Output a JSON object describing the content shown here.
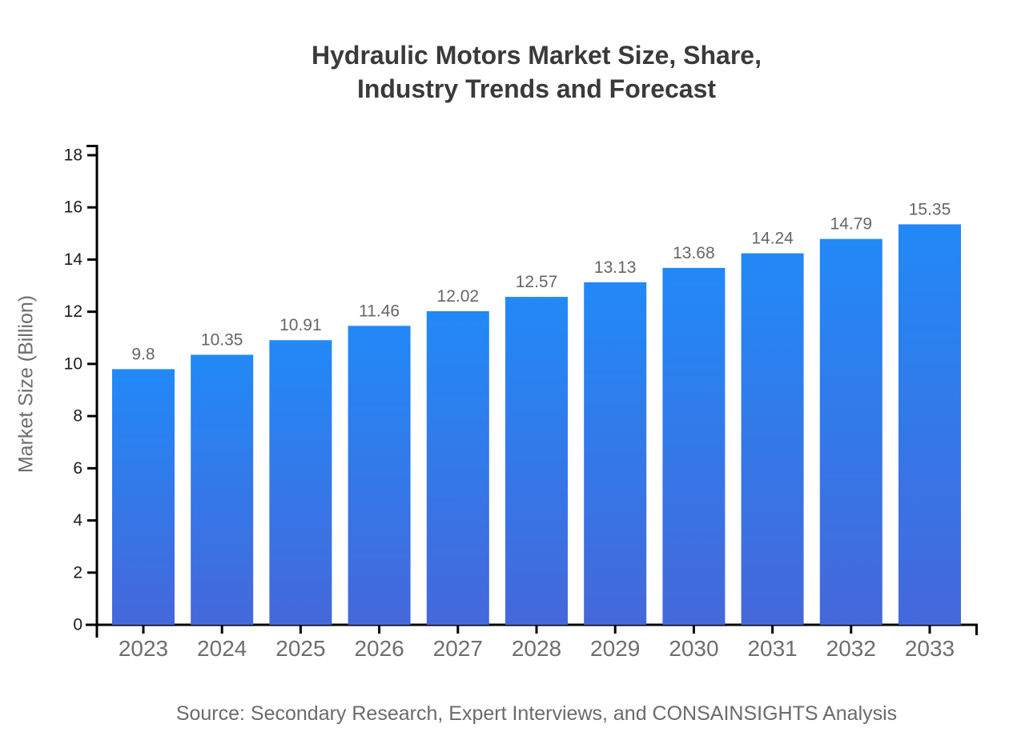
{
  "page": {
    "background": "#ffffff"
  },
  "chart_data": {
    "type": "bar",
    "title": "Hydraulic Motors Market Size, Share,\nIndustry Trends and Forecast",
    "ylabel": "Market Size (Billion)",
    "categories": [
      "2023",
      "2024",
      "2025",
      "2026",
      "2027",
      "2028",
      "2029",
      "2030",
      "2031",
      "2032",
      "2033"
    ],
    "values": [
      9.8,
      10.35,
      10.91,
      11.46,
      12.02,
      12.57,
      13.13,
      13.68,
      14.24,
      14.79,
      15.35
    ],
    "value_labels": [
      "9.8",
      "10.35",
      "10.91",
      "11.46",
      "12.02",
      "12.57",
      "13.13",
      "13.68",
      "14.24",
      "14.79",
      "15.35"
    ],
    "ylim": [
      0,
      18
    ],
    "yticks": [
      0,
      2,
      4,
      6,
      8,
      10,
      12,
      14,
      16,
      18
    ],
    "grid": false,
    "legend": false,
    "bar_label_position": "above",
    "source": "Source: Secondary Research, Expert Interviews, and CONSAINSIGHTS Analysis",
    "colors": {
      "bar_gradient_top": "#2289f7",
      "bar_gradient_bottom": "#4568da",
      "axis": "#000000",
      "title_text": "#3a3a3a",
      "value_label": "#666666",
      "x_tick_label": "#6e6e6e",
      "y_tick_label": "#1c1c1c",
      "axis_title": "#6e6e6e",
      "source_text": "#6b6b6b"
    }
  }
}
